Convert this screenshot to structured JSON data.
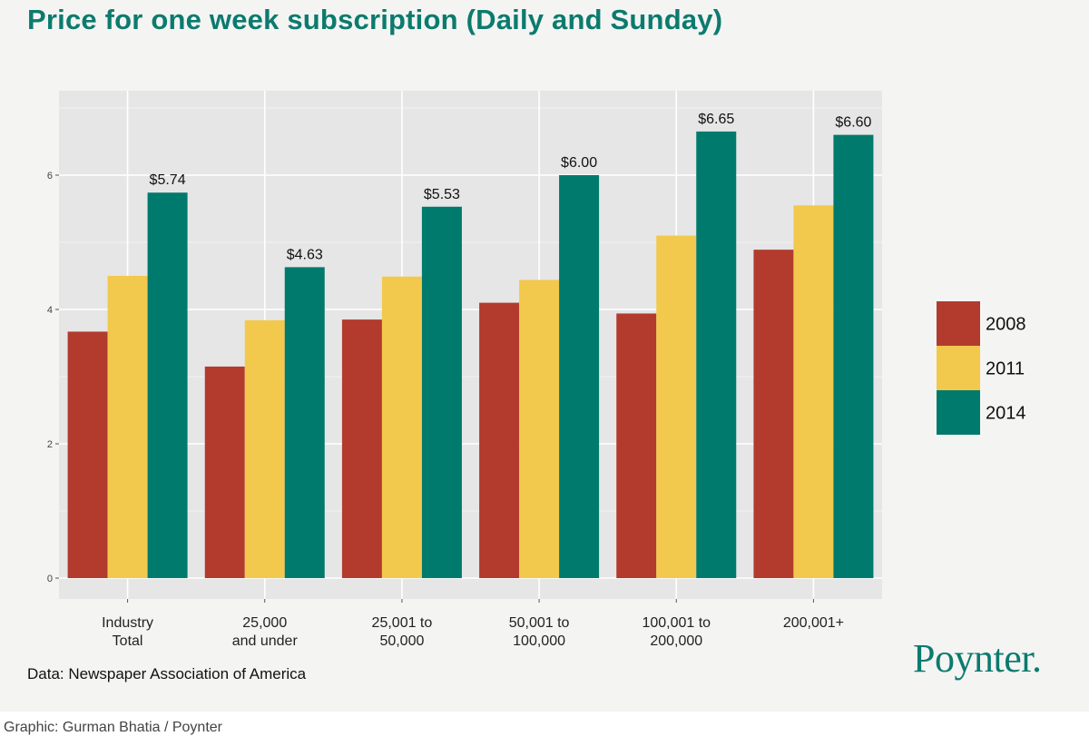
{
  "title": "Price for one week subscription (Daily and Sunday)",
  "source": "Data: Newspaper Association of America",
  "logo": "Poynter.",
  "credit": "Graphic: Gurman Bhatia / Poynter",
  "colors": {
    "y2008": "#b23b2e",
    "y2011": "#f2c94c",
    "y2014": "#007a6c",
    "title": "#0b7b6e"
  },
  "chart_data": {
    "type": "bar",
    "title": "Price for one week subscription (Daily and Sunday)",
    "xlabel": "",
    "ylabel": "",
    "categories": [
      [
        "Industry",
        "Total"
      ],
      [
        "25,000",
        "and under"
      ],
      [
        "25,001 to",
        "50,000"
      ],
      [
        "50,001 to",
        "100,000"
      ],
      [
        "100,001 to",
        "200,000"
      ],
      [
        "200,001+"
      ]
    ],
    "series": [
      {
        "name": "2008",
        "color": "#b23b2e",
        "values": [
          3.67,
          3.15,
          3.85,
          4.1,
          3.94,
          4.89
        ]
      },
      {
        "name": "2011",
        "color": "#f2c94c",
        "values": [
          4.5,
          3.84,
          4.49,
          4.44,
          5.1,
          5.55
        ]
      },
      {
        "name": "2014",
        "color": "#007a6c",
        "values": [
          5.74,
          4.63,
          5.53,
          6.0,
          6.65,
          6.6
        ]
      }
    ],
    "data_labels": [
      "$5.74",
      "$4.63",
      "$5.53",
      "$6.00",
      "$6.65",
      "$6.60"
    ],
    "ylim": [
      0,
      7
    ],
    "yticks": [
      "0",
      "2",
      "4",
      "6"
    ],
    "grid": true,
    "legend_position": "right"
  }
}
